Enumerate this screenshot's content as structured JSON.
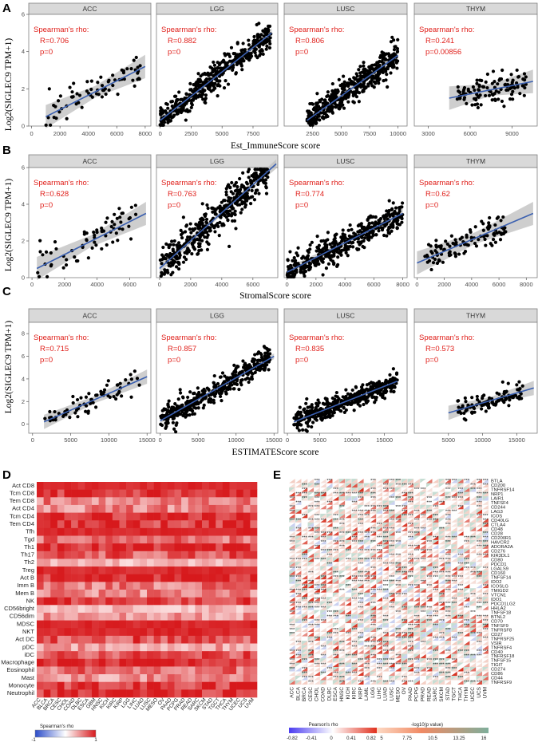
{
  "panels": {
    "A": "A",
    "B": "B",
    "C": "C",
    "D": "D",
    "E": "E"
  },
  "scatter_ylabel": "Log2(SIGLEC9 TPM+1)",
  "annotation_header": "Spearman's rho:",
  "chart_data": [
    {
      "type": "scatter",
      "panel": "A",
      "xlabel": "Est_ImmuneScore score",
      "ylabel": "Log2(SIGLEC9 TPM+1)",
      "ylim": [
        0,
        6
      ],
      "yticks": [
        0,
        2,
        4,
        6
      ],
      "facets": [
        {
          "name": "ACC",
          "xlim": [
            -200,
            8400
          ],
          "xticks": [
            0,
            2000,
            4000,
            6000,
            8000
          ],
          "R": "R=0.706",
          "p": "p=0",
          "fit": [
            [
              1000,
              0.5
            ],
            [
              8000,
              3.2
            ]
          ],
          "cloud": {
            "x": [
              1000,
              8000
            ],
            "n": 70,
            "spread": 0.9
          }
        },
        {
          "name": "LGG",
          "xlim": [
            -300,
            9500
          ],
          "xticks": [
            0,
            2500,
            5000,
            7500
          ],
          "R": "R=0.882",
          "p": "p=0",
          "fit": [
            [
              0,
              0.3
            ],
            [
              9000,
              5.0
            ]
          ],
          "cloud": {
            "x": [
              0,
              9000
            ],
            "n": 450,
            "spread": 0.7
          }
        },
        {
          "name": "LUSC",
          "xlim": [
            0,
            10800
          ],
          "xticks": [
            2500,
            5000,
            7500,
            10000
          ],
          "R": "R=0.806",
          "p": "p=0",
          "fit": [
            [
              2000,
              0.3
            ],
            [
              10000,
              3.8
            ]
          ],
          "cloud": {
            "x": [
              2000,
              10000
            ],
            "n": 450,
            "spread": 0.7
          }
        },
        {
          "name": "THYM",
          "xlim": [
            2000,
            10800
          ],
          "xticks": [
            3000,
            6000,
            9000
          ],
          "R": "R=0.241",
          "p": "p=0.00856",
          "fit": [
            [
              4500,
              1.5
            ],
            [
              10500,
              2.4
            ]
          ],
          "cloud": {
            "x": [
              5000,
              10000
            ],
            "n": 110,
            "spread": 0.7
          }
        }
      ]
    },
    {
      "type": "scatter",
      "panel": "B",
      "xlabel": "StromalScore score",
      "ylabel": "Log2(SIGLEC9 TPM+1)",
      "ylim": [
        0,
        6
      ],
      "yticks": [
        0,
        2,
        4,
        6
      ],
      "facets": [
        {
          "name": "ACC",
          "xlim": [
            -200,
            7300
          ],
          "xticks": [
            0,
            2000,
            4000,
            6000
          ],
          "R": "R=0.628",
          "p": "p=0",
          "fit": [
            [
              300,
              0.5
            ],
            [
              7000,
              3.5
            ]
          ],
          "cloud": {
            "x": [
              300,
              6500
            ],
            "n": 70,
            "spread": 0.9
          }
        },
        {
          "name": "LGG",
          "xlim": [
            -200,
            7600
          ],
          "xticks": [
            0,
            2000,
            4000,
            6000
          ],
          "R": "R=0.763",
          "p": "p=0",
          "fit": [
            [
              0,
              0.5
            ],
            [
              7500,
              6.2
            ]
          ],
          "cloud": {
            "x": [
              0,
              7000
            ],
            "n": 450,
            "spread": 0.9
          }
        },
        {
          "name": "LUSC",
          "xlim": [
            -200,
            8300
          ],
          "xticks": [
            0,
            2000,
            4000,
            6000,
            8000
          ],
          "R": "R=0.774",
          "p": "p=0",
          "fit": [
            [
              0,
              0.3
            ],
            [
              8000,
              3.5
            ]
          ],
          "cloud": {
            "x": [
              0,
              8000
            ],
            "n": 450,
            "spread": 0.7
          }
        },
        {
          "name": "THYM",
          "xlim": [
            -200,
            8800
          ],
          "xticks": [
            0,
            2000,
            4000,
            6000,
            8000
          ],
          "R": "R=0.62",
          "p": "p=0",
          "fit": [
            [
              0,
              0.8
            ],
            [
              8500,
              3.5
            ]
          ],
          "cloud": {
            "x": [
              500,
              6500
            ],
            "n": 110,
            "spread": 0.7
          }
        }
      ]
    },
    {
      "type": "scatter",
      "panel": "C",
      "xlabel": "ESTIMATEScore score",
      "ylabel": "Log2(SIGLEC9 TPM+1)",
      "ylim": [
        -0.8,
        9
      ],
      "yticks": [
        0,
        2,
        4,
        6,
        8
      ],
      "facets": [
        {
          "name": "ACC",
          "xlim": [
            -500,
            15500
          ],
          "xticks": [
            0,
            5000,
            10000,
            15000
          ],
          "R": "R=0.715",
          "p": "p=0",
          "fit": [
            [
              1500,
              0.2
            ],
            [
              15000,
              4.2
            ]
          ],
          "cloud": {
            "x": [
              1500,
              14000
            ],
            "n": 70,
            "spread": 0.9
          }
        },
        {
          "name": "LGG",
          "xlim": [
            -500,
            15500
          ],
          "xticks": [
            0,
            5000,
            10000,
            15000
          ],
          "R": "R=0.857",
          "p": "p=0",
          "fit": [
            [
              0,
              0.3
            ],
            [
              15000,
              6.0
            ]
          ],
          "cloud": {
            "x": [
              0,
              14500
            ],
            "n": 450,
            "spread": 0.9
          }
        },
        {
          "name": "LUSC",
          "xlim": [
            -500,
            18500
          ],
          "xticks": [
            0,
            5000,
            10000,
            15000
          ],
          "R": "R=0.835",
          "p": "p=0",
          "fit": [
            [
              1000,
              0.2
            ],
            [
              17000,
              3.8
            ]
          ],
          "cloud": {
            "x": [
              1000,
              17000
            ],
            "n": 450,
            "spread": 0.8
          }
        },
        {
          "name": "THYM",
          "xlim": [
            0,
            18000
          ],
          "xticks": [
            5000,
            10000,
            15000
          ],
          "R": "R=0.573",
          "p": "p=0",
          "fit": [
            [
              5000,
              1.0
            ],
            [
              17500,
              3.2
            ]
          ],
          "cloud": {
            "x": [
              6000,
              16000
            ],
            "n": 110,
            "spread": 0.8
          }
        }
      ]
    },
    {
      "type": "heatmap",
      "panel": "D",
      "rows": [
        "Act CD8",
        "Tcm CD8",
        "Tem CD8",
        "Act CD4",
        "Tcm CD4",
        "Tem CD4",
        "Tfh",
        "Tgd",
        "Th1",
        "Th17",
        "Th2",
        "Treg",
        "Act B",
        "Imm B",
        "Mem B",
        "NK",
        "CD56bright",
        "CD56dim",
        "MDSC",
        "NKT",
        "Act DC",
        "pDC",
        "iDC",
        "Macrophage",
        "Eosinophil",
        "Mast",
        "Monocyte",
        "Neutrophil"
      ],
      "columns": [
        "ACC",
        "BLCA",
        "BRCA",
        "CESC",
        "CHOL",
        "COAD",
        "DLBC",
        "ESCA",
        "GBM",
        "HNSC",
        "KICH",
        "KIRC",
        "KIRP",
        "LGG",
        "LIHC",
        "LUAD",
        "LUSC",
        "MESO",
        "OV",
        "PAAD",
        "PCPG",
        "PRAD",
        "READ",
        "SARC",
        "SKCM",
        "STAD",
        "TGCT",
        "THCA",
        "THYM",
        "UCEC",
        "UCS",
        "UVM"
      ],
      "legend_title": "Spearman's rho",
      "legend_min": "-1",
      "legend_max": "1"
    },
    {
      "type": "heatmap",
      "panel": "E",
      "rows": [
        "BTLA",
        "CD200",
        "TNFRSF14",
        "NRP1",
        "LAIR1",
        "TNFSF4",
        "CD244",
        "LAG3",
        "ICOS",
        "CD40LG",
        "CTLA4",
        "CD48",
        "CD28",
        "CD200R1",
        "HAVCR2",
        "ADORA2A",
        "CD276",
        "KIR3DL1",
        "CD80",
        "PDCD1",
        "LGALS9",
        "CD160",
        "TNFSF14",
        "IDO2",
        "ICOSLG",
        "TMIGD2",
        "VTCN1",
        "IDO1",
        "PDCD1LG2",
        "HHLA2",
        "TNFSF18",
        "BTNL2",
        "CD70",
        "TNFSF9",
        "TNFRSF8",
        "CD27",
        "TNFRSF25",
        "VSIR",
        "TNFRSF4",
        "CD40",
        "TNFRSF18",
        "TNFSF15",
        "TIGIT",
        "CD274",
        "CD86",
        "CD44",
        "TNFRSF9"
      ],
      "columns": [
        "ACC",
        "BLCA",
        "BRCA",
        "CESC",
        "CHOL",
        "COAD",
        "DLBC",
        "ESCA",
        "HNSC",
        "KICH",
        "KIRC",
        "KIRP",
        "LAML",
        "LGG",
        "LIHC",
        "LUAD",
        "LUSC",
        "MESO",
        "OV",
        "PAAD",
        "PCPG",
        "PRAD",
        "READ",
        "SARC",
        "SKCM",
        "STAD",
        "TGCT",
        "THCA",
        "THYM",
        "UCEC",
        "UCS",
        "UVM"
      ],
      "legend_rho_title": "Pearson's rho",
      "rho_ticks": [
        "-0.82",
        "-0.41",
        "0",
        "0.41",
        "0.82"
      ],
      "legend_p_title": "-log10(p value)",
      "p_ticks": [
        "5",
        "7.75",
        "10.5",
        "13.25",
        "16"
      ]
    }
  ],
  "colors": {
    "point": "#000000",
    "fit": "#3a5fb0",
    "band": "#bdbdbd",
    "anno": "#e0201b",
    "hm_high": "#d7191c",
    "hm_low": "#2b4cc9"
  }
}
